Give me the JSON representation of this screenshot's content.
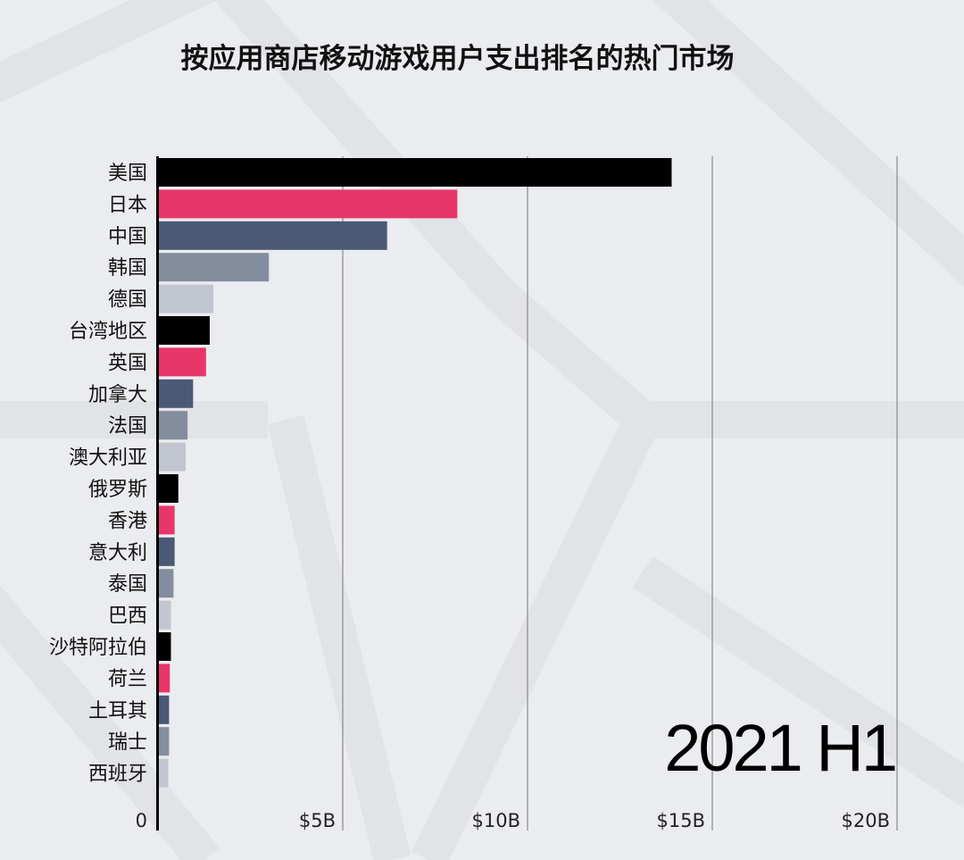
{
  "chart_data": {
    "type": "bar",
    "orientation": "horizontal",
    "title": "按应用商店移动游戏用户支出排名的热门市场",
    "period": "2021 H1",
    "categories": [
      "美国",
      "日本",
      "中国",
      "韩国",
      "德国",
      "台湾地区",
      "英国",
      "加拿大",
      "法国",
      "澳大利亚",
      "俄罗斯",
      "香港",
      "意大利",
      "泰国",
      "巴西",
      "沙特阿拉伯",
      "荷兰",
      "土耳其",
      "瑞士",
      "西班牙"
    ],
    "values": [
      13.9,
      8.1,
      6.2,
      3.0,
      1.5,
      1.4,
      1.3,
      0.95,
      0.8,
      0.75,
      0.55,
      0.45,
      0.45,
      0.42,
      0.35,
      0.35,
      0.32,
      0.3,
      0.3,
      0.28
    ],
    "colors": [
      "#000000",
      "#e8366a",
      "#4a5975",
      "#848d9e",
      "#c2c6d1"
    ],
    "xlim": [
      0,
      20
    ],
    "x_ticks": [
      {
        "value": 0,
        "label": "0"
      },
      {
        "value": 5,
        "label": "$5B"
      },
      {
        "value": 10,
        "label": "$10B"
      },
      {
        "value": 15,
        "label": "$15B"
      },
      {
        "value": 20,
        "label": "$20B"
      }
    ],
    "grid": true,
    "xlabel": "",
    "ylabel": ""
  }
}
